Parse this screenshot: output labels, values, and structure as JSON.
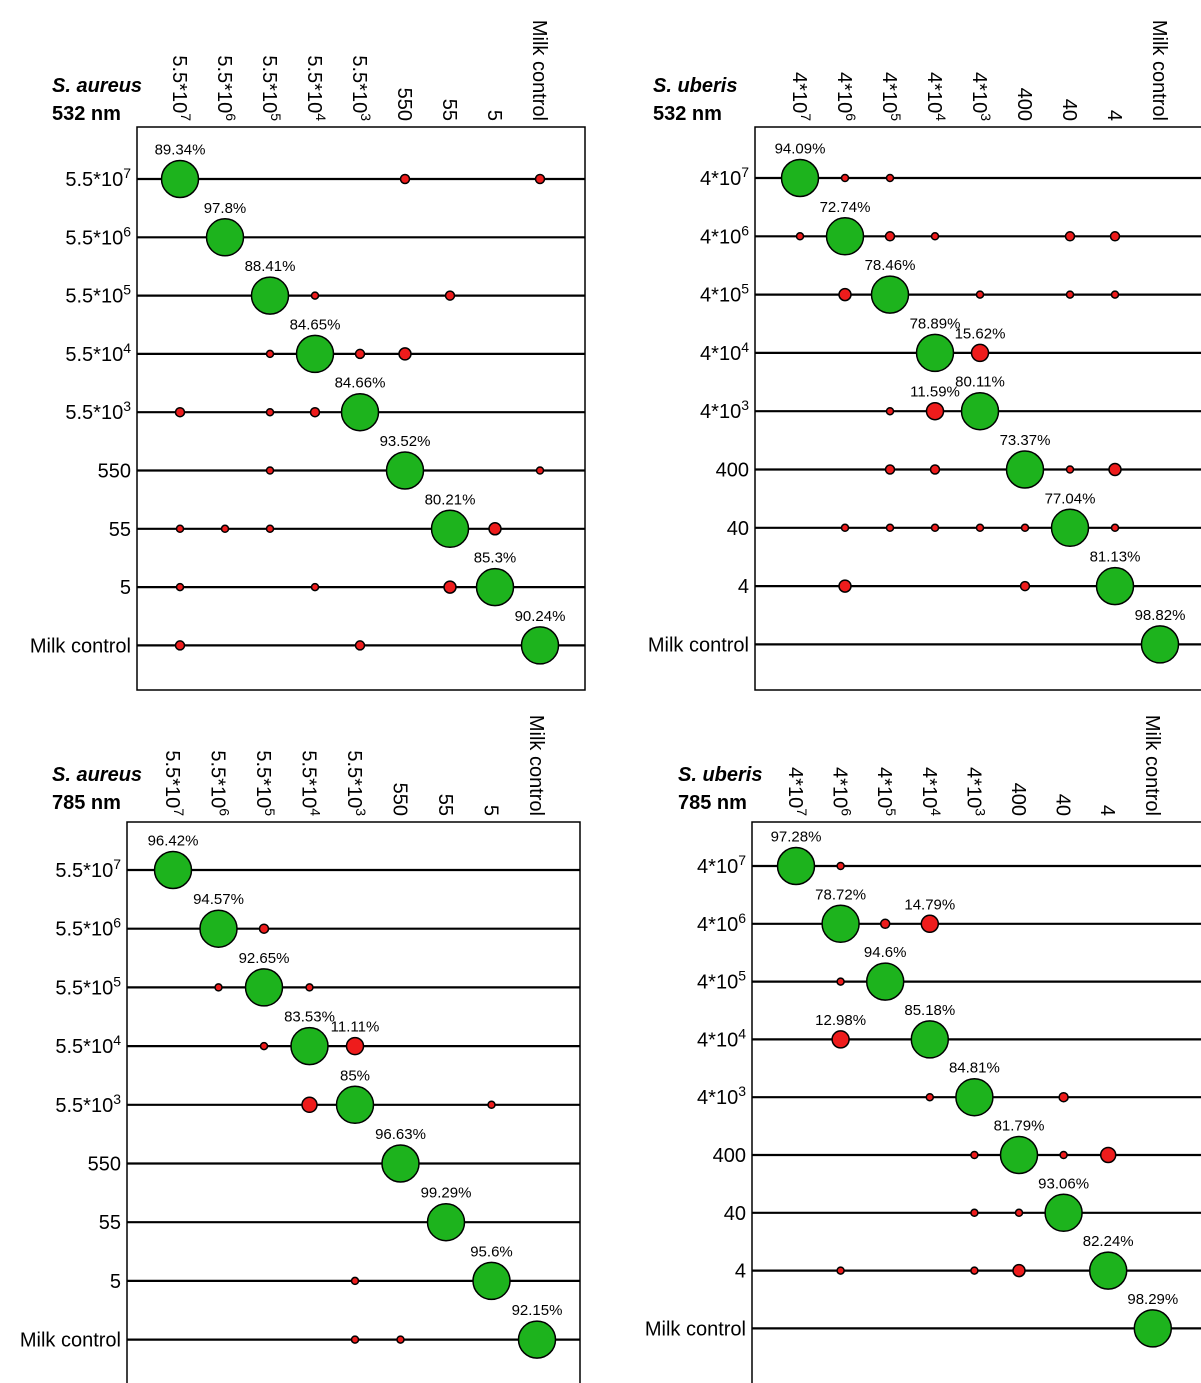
{
  "colors": {
    "correct": "#1db31d",
    "misclassified": "#ee1c1c",
    "outline": "#000000"
  },
  "chart_data": [
    {
      "type": "scatter",
      "title": "S. aureus",
      "subtitle": "532 nm",
      "categories": [
        "5.5*10^7",
        "5.5*10^6",
        "5.5*10^5",
        "5.5*10^4",
        "5.5*10^3",
        "550",
        "55",
        "5",
        "Milk control"
      ],
      "points": [
        {
          "row": 0,
          "col": 0,
          "value": 89.34,
          "label": "89.34%",
          "kind": "correct"
        },
        {
          "row": 0,
          "col": 5,
          "value": 1,
          "kind": "misclassified"
        },
        {
          "row": 0,
          "col": 8,
          "value": 1,
          "kind": "misclassified"
        },
        {
          "row": 1,
          "col": 1,
          "value": 97.8,
          "label": "97.8%",
          "kind": "correct"
        },
        {
          "row": 2,
          "col": 2,
          "value": 88.41,
          "label": "88.41%",
          "kind": "correct"
        },
        {
          "row": 2,
          "col": 3,
          "value": 0.5,
          "kind": "misclassified"
        },
        {
          "row": 2,
          "col": 6,
          "value": 1,
          "kind": "misclassified"
        },
        {
          "row": 3,
          "col": 2,
          "value": 0.5,
          "kind": "misclassified"
        },
        {
          "row": 3,
          "col": 3,
          "value": 84.65,
          "label": "84.65%",
          "kind": "correct"
        },
        {
          "row": 3,
          "col": 4,
          "value": 1,
          "kind": "misclassified"
        },
        {
          "row": 3,
          "col": 5,
          "value": 2,
          "kind": "misclassified"
        },
        {
          "row": 4,
          "col": 0,
          "value": 1,
          "kind": "misclassified"
        },
        {
          "row": 4,
          "col": 2,
          "value": 0.5,
          "kind": "misclassified"
        },
        {
          "row": 4,
          "col": 3,
          "value": 1,
          "kind": "misclassified"
        },
        {
          "row": 4,
          "col": 4,
          "value": 84.66,
          "label": "84.66%",
          "kind": "correct"
        },
        {
          "row": 5,
          "col": 2,
          "value": 0.5,
          "kind": "misclassified"
        },
        {
          "row": 5,
          "col": 5,
          "value": 93.52,
          "label": "93.52%",
          "kind": "correct"
        },
        {
          "row": 5,
          "col": 8,
          "value": 0.5,
          "kind": "misclassified"
        },
        {
          "row": 6,
          "col": 0,
          "value": 0.5,
          "kind": "misclassified"
        },
        {
          "row": 6,
          "col": 1,
          "value": 0.5,
          "kind": "misclassified"
        },
        {
          "row": 6,
          "col": 2,
          "value": 0.5,
          "kind": "misclassified"
        },
        {
          "row": 6,
          "col": 6,
          "value": 80.21,
          "label": "80.21%",
          "kind": "correct"
        },
        {
          "row": 6,
          "col": 7,
          "value": 2,
          "kind": "misclassified"
        },
        {
          "row": 7,
          "col": 0,
          "value": 0.5,
          "kind": "misclassified"
        },
        {
          "row": 7,
          "col": 3,
          "value": 0.5,
          "kind": "misclassified"
        },
        {
          "row": 7,
          "col": 6,
          "value": 2,
          "kind": "misclassified"
        },
        {
          "row": 7,
          "col": 7,
          "value": 85.3,
          "label": "85.3%",
          "kind": "correct"
        },
        {
          "row": 8,
          "col": 0,
          "value": 1,
          "kind": "misclassified"
        },
        {
          "row": 8,
          "col": 4,
          "value": 1,
          "kind": "misclassified"
        },
        {
          "row": 8,
          "col": 8,
          "value": 90.24,
          "label": "90.24%",
          "kind": "correct"
        }
      ]
    },
    {
      "type": "scatter",
      "title": "S. uberis",
      "subtitle": "532 nm",
      "categories": [
        "4*10^7",
        "4*10^6",
        "4*10^5",
        "4*10^4",
        "4*10^3",
        "400",
        "40",
        "4",
        "Milk control"
      ],
      "points": [
        {
          "row": 0,
          "col": 0,
          "value": 94.09,
          "label": "94.09%",
          "kind": "correct"
        },
        {
          "row": 0,
          "col": 1,
          "value": 0.5,
          "kind": "misclassified"
        },
        {
          "row": 0,
          "col": 2,
          "value": 0.5,
          "kind": "misclassified"
        },
        {
          "row": 1,
          "col": 0,
          "value": 0.5,
          "kind": "misclassified"
        },
        {
          "row": 1,
          "col": 1,
          "value": 72.74,
          "label": "72.74%",
          "kind": "correct"
        },
        {
          "row": 1,
          "col": 2,
          "value": 1,
          "kind": "misclassified"
        },
        {
          "row": 1,
          "col": 3,
          "value": 0.5,
          "kind": "misclassified"
        },
        {
          "row": 1,
          "col": 6,
          "value": 1,
          "kind": "misclassified"
        },
        {
          "row": 1,
          "col": 7,
          "value": 1,
          "kind": "misclassified"
        },
        {
          "row": 2,
          "col": 1,
          "value": 2,
          "kind": "misclassified"
        },
        {
          "row": 2,
          "col": 2,
          "value": 78.46,
          "label": "78.46%",
          "kind": "correct"
        },
        {
          "row": 2,
          "col": 4,
          "value": 0.5,
          "kind": "misclassified"
        },
        {
          "row": 2,
          "col": 6,
          "value": 0.5,
          "kind": "misclassified"
        },
        {
          "row": 2,
          "col": 7,
          "value": 0.5,
          "kind": "misclassified"
        },
        {
          "row": 3,
          "col": 3,
          "value": 78.89,
          "label": "78.89%",
          "kind": "correct"
        },
        {
          "row": 3,
          "col": 4,
          "value": 15.62,
          "label": "15.62%",
          "kind": "misclassified"
        },
        {
          "row": 4,
          "col": 2,
          "value": 0.5,
          "kind": "misclassified"
        },
        {
          "row": 4,
          "col": 3,
          "value": 11.59,
          "label": "11.59%",
          "kind": "misclassified"
        },
        {
          "row": 4,
          "col": 4,
          "value": 80.11,
          "label": "80.11%",
          "kind": "correct"
        },
        {
          "row": 5,
          "col": 2,
          "value": 1,
          "kind": "misclassified"
        },
        {
          "row": 5,
          "col": 3,
          "value": 1,
          "kind": "misclassified"
        },
        {
          "row": 5,
          "col": 5,
          "value": 73.37,
          "label": "73.37%",
          "kind": "correct"
        },
        {
          "row": 5,
          "col": 6,
          "value": 0.5,
          "kind": "misclassified"
        },
        {
          "row": 5,
          "col": 7,
          "value": 2,
          "kind": "misclassified"
        },
        {
          "row": 6,
          "col": 1,
          "value": 0.5,
          "kind": "misclassified"
        },
        {
          "row": 6,
          "col": 2,
          "value": 0.5,
          "kind": "misclassified"
        },
        {
          "row": 6,
          "col": 3,
          "value": 0.5,
          "kind": "misclassified"
        },
        {
          "row": 6,
          "col": 4,
          "value": 0.5,
          "kind": "misclassified"
        },
        {
          "row": 6,
          "col": 5,
          "value": 0.5,
          "kind": "misclassified"
        },
        {
          "row": 6,
          "col": 6,
          "value": 77.04,
          "label": "77.04%",
          "kind": "correct"
        },
        {
          "row": 6,
          "col": 7,
          "value": 0.5,
          "kind": "misclassified"
        },
        {
          "row": 7,
          "col": 1,
          "value": 2,
          "kind": "misclassified"
        },
        {
          "row": 7,
          "col": 5,
          "value": 1,
          "kind": "misclassified"
        },
        {
          "row": 7,
          "col": 7,
          "value": 81.13,
          "label": "81.13%",
          "kind": "correct"
        },
        {
          "row": 8,
          "col": 8,
          "value": 98.82,
          "label": "98.82%",
          "kind": "correct"
        }
      ]
    },
    {
      "type": "scatter",
      "title": "S. aureus",
      "subtitle": "785 nm",
      "categories": [
        "5.5*10^7",
        "5.5*10^6",
        "5.5*10^5",
        "5.5*10^4",
        "5.5*10^3",
        "550",
        "55",
        "5",
        "Milk control"
      ],
      "points": [
        {
          "row": 0,
          "col": 0,
          "value": 96.42,
          "label": "96.42%",
          "kind": "correct"
        },
        {
          "row": 1,
          "col": 1,
          "value": 94.57,
          "label": "94.57%",
          "kind": "correct"
        },
        {
          "row": 1,
          "col": 2,
          "value": 1,
          "kind": "misclassified"
        },
        {
          "row": 2,
          "col": 1,
          "value": 0.5,
          "kind": "misclassified"
        },
        {
          "row": 2,
          "col": 2,
          "value": 92.65,
          "label": "92.65%",
          "kind": "correct"
        },
        {
          "row": 2,
          "col": 3,
          "value": 0.5,
          "kind": "misclassified"
        },
        {
          "row": 3,
          "col": 2,
          "value": 0.5,
          "kind": "misclassified"
        },
        {
          "row": 3,
          "col": 3,
          "value": 83.53,
          "label": "83.53%",
          "kind": "correct"
        },
        {
          "row": 3,
          "col": 4,
          "value": 11.11,
          "label": "11.11%",
          "kind": "misclassified"
        },
        {
          "row": 4,
          "col": 3,
          "value": 3,
          "kind": "misclassified"
        },
        {
          "row": 4,
          "col": 4,
          "value": 85,
          "label": "85%",
          "kind": "correct"
        },
        {
          "row": 4,
          "col": 7,
          "value": 0.5,
          "kind": "misclassified"
        },
        {
          "row": 5,
          "col": 5,
          "value": 96.63,
          "label": "96.63%",
          "kind": "correct"
        },
        {
          "row": 6,
          "col": 6,
          "value": 99.29,
          "label": "99.29%",
          "kind": "correct"
        },
        {
          "row": 7,
          "col": 4,
          "value": 0.5,
          "kind": "misclassified"
        },
        {
          "row": 7,
          "col": 7,
          "value": 95.6,
          "label": "95.6%",
          "kind": "correct"
        },
        {
          "row": 8,
          "col": 4,
          "value": 0.5,
          "kind": "misclassified"
        },
        {
          "row": 8,
          "col": 5,
          "value": 0.5,
          "kind": "misclassified"
        },
        {
          "row": 8,
          "col": 8,
          "value": 92.15,
          "label": "92.15%",
          "kind": "correct"
        }
      ]
    },
    {
      "type": "scatter",
      "title": "S. uberis",
      "subtitle": "785 nm",
      "categories": [
        "4*10^7",
        "4*10^6",
        "4*10^5",
        "4*10^4",
        "4*10^3",
        "400",
        "40",
        "4",
        "Milk control"
      ],
      "points": [
        {
          "row": 0,
          "col": 0,
          "value": 97.28,
          "label": "97.28%",
          "kind": "correct"
        },
        {
          "row": 0,
          "col": 1,
          "value": 0.5,
          "kind": "misclassified"
        },
        {
          "row": 1,
          "col": 1,
          "value": 78.72,
          "label": "78.72%",
          "kind": "correct"
        },
        {
          "row": 1,
          "col": 2,
          "value": 1,
          "kind": "misclassified"
        },
        {
          "row": 1,
          "col": 3,
          "value": 14.79,
          "label": "14.79%",
          "kind": "misclassified"
        },
        {
          "row": 2,
          "col": 1,
          "value": 0.5,
          "kind": "misclassified"
        },
        {
          "row": 2,
          "col": 2,
          "value": 94.6,
          "label": "94.6%",
          "kind": "correct"
        },
        {
          "row": 3,
          "col": 1,
          "value": 12.98,
          "label": "12.98%",
          "kind": "misclassified"
        },
        {
          "row": 3,
          "col": 3,
          "value": 85.18,
          "label": "85.18%",
          "kind": "correct"
        },
        {
          "row": 4,
          "col": 3,
          "value": 0.5,
          "kind": "misclassified"
        },
        {
          "row": 4,
          "col": 4,
          "value": 84.81,
          "label": "84.81%",
          "kind": "correct"
        },
        {
          "row": 4,
          "col": 6,
          "value": 1,
          "kind": "misclassified"
        },
        {
          "row": 5,
          "col": 4,
          "value": 0.5,
          "kind": "misclassified"
        },
        {
          "row": 5,
          "col": 5,
          "value": 81.79,
          "label": "81.79%",
          "kind": "correct"
        },
        {
          "row": 5,
          "col": 6,
          "value": 0.5,
          "kind": "misclassified"
        },
        {
          "row": 5,
          "col": 7,
          "value": 3,
          "kind": "misclassified"
        },
        {
          "row": 6,
          "col": 4,
          "value": 0.5,
          "kind": "misclassified"
        },
        {
          "row": 6,
          "col": 5,
          "value": 0.5,
          "kind": "misclassified"
        },
        {
          "row": 6,
          "col": 6,
          "value": 93.06,
          "label": "93.06%",
          "kind": "correct"
        },
        {
          "row": 7,
          "col": 1,
          "value": 0.5,
          "kind": "misclassified"
        },
        {
          "row": 7,
          "col": 4,
          "value": 0.5,
          "kind": "misclassified"
        },
        {
          "row": 7,
          "col": 5,
          "value": 2,
          "kind": "misclassified"
        },
        {
          "row": 7,
          "col": 7,
          "value": 82.24,
          "label": "82.24%",
          "kind": "correct"
        },
        {
          "row": 8,
          "col": 8,
          "value": 98.29,
          "label": "98.29%",
          "kind": "correct"
        }
      ]
    }
  ]
}
